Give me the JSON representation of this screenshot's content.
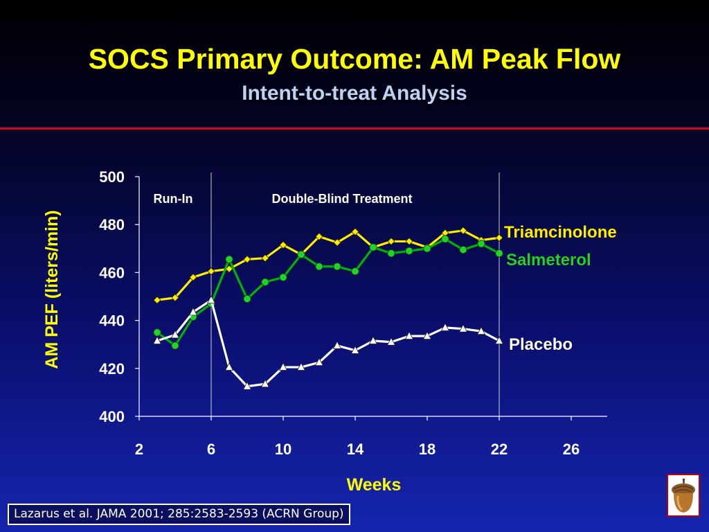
{
  "slide": {
    "title": "SOCS Primary Outcome: AM Peak Flow",
    "subtitle": "Intent-to-treat Analysis",
    "citation": "Lazarus et al.  JAMA 2001; 285:2583-2593 (ACRN Group)",
    "logo_icon": "acorn-icon"
  },
  "colors": {
    "title": "#ffff00",
    "subtitle": "#bcd3f5",
    "rule": "#e0001f",
    "triamcinolone": "#ffee00",
    "salmeterol": "#00b400",
    "placebo": "#ffffff"
  },
  "chart_data": {
    "type": "line",
    "xlabel": "Weeks",
    "ylabel": "AM PEF (liters/min)",
    "xlim": [
      2,
      28
    ],
    "ylim": [
      400,
      500
    ],
    "x_ticks": [
      2,
      6,
      10,
      14,
      18,
      22,
      26
    ],
    "y_ticks": [
      400,
      420,
      440,
      460,
      480,
      500
    ],
    "grid": false,
    "phase_markers": [
      6,
      22
    ],
    "phase_labels": [
      "Run-In",
      "Double-Blind Treatment"
    ],
    "series": [
      {
        "name": "Triamcinolone",
        "marker": "diamond",
        "x": [
          3,
          4,
          5,
          6,
          7,
          8,
          9,
          10,
          11,
          12,
          13,
          14,
          15,
          16,
          17,
          18,
          19,
          20,
          21,
          22
        ],
        "values": [
          448.5,
          449.5,
          458,
          460.5,
          461.5,
          465.5,
          466,
          471.5,
          467.5,
          475,
          472.5,
          477,
          470.5,
          473,
          473,
          470.5,
          476.5,
          477.5,
          473.5,
          474.5
        ]
      },
      {
        "name": "Salmeterol",
        "marker": "circle",
        "x": [
          3,
          4,
          5,
          6,
          7,
          8,
          9,
          10,
          11,
          12,
          13,
          14,
          15,
          16,
          17,
          18,
          19,
          20,
          21,
          22
        ],
        "values": [
          435,
          429.5,
          441.5,
          447,
          465.5,
          449,
          456,
          458,
          467.5,
          462.5,
          462.5,
          460.5,
          470.5,
          468,
          469,
          470,
          474,
          469.5,
          472,
          468
        ]
      },
      {
        "name": "Placebo",
        "marker": "triangle",
        "x": [
          3,
          4,
          5,
          6,
          7,
          8,
          9,
          10,
          11,
          12,
          13,
          14,
          15,
          16,
          17,
          18,
          19,
          20,
          21,
          22
        ],
        "values": [
          431.5,
          434,
          443.5,
          448.5,
          420.5,
          412.5,
          413.5,
          420.5,
          420.5,
          422.5,
          429.5,
          427.5,
          431.5,
          431,
          433.5,
          433.5,
          437,
          436.5,
          435.5,
          431.5
        ]
      }
    ]
  }
}
